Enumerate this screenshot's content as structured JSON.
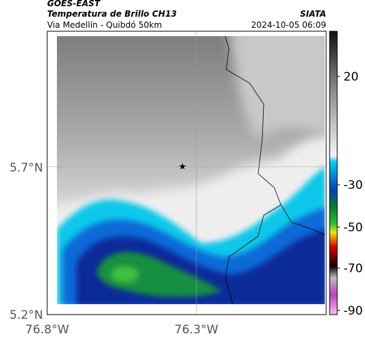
{
  "header": {
    "source": "GOES-EAST",
    "title": "Temperatura de Brillo CH13",
    "subtitle": "Via Medellín - Quibdó 50km",
    "agency": "SIATA",
    "datetime": "2024-10-05 06:09"
  },
  "axes": {
    "y_labels": [
      "5.7°N",
      "5.2°N"
    ],
    "x_labels": [
      "76.8°W",
      "76.3°W"
    ]
  },
  "colorbar": {
    "ticks": [
      "20",
      "-30",
      "-50",
      "-70",
      "-90"
    ]
  }
}
